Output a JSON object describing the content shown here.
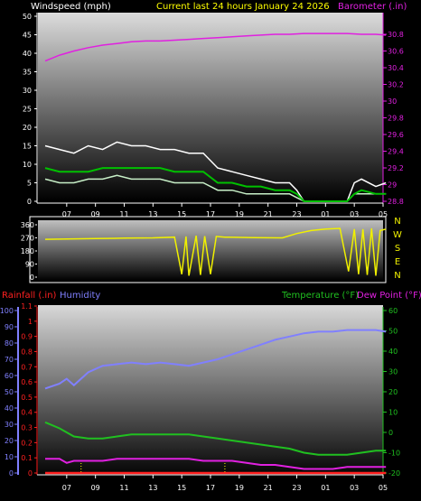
{
  "header": {
    "left": "Windspeed (mph)",
    "center": "Current last 24 hours January 24 2026",
    "right": "Barometer (.in)"
  },
  "footer_labels": {
    "rainfall": "Rainfall (.in)",
    "humidity": "Humidity",
    "temperature": "Temperature (°F)",
    "dewpoint": "Dew Point (°F)"
  },
  "colors": {
    "barometer": "#e020e0",
    "wind_gust": "#ffffff",
    "wind_speed": "#c8f0c8",
    "wind_avg": "#00c000",
    "direction": "#f0f000",
    "humidity": "#8080ff",
    "temperature": "#20c020",
    "dewpoint": "#e020e0",
    "rainfall": "#ff2020",
    "center_title": "#ffff00"
  },
  "chart_data": [
    {
      "id": "wind-barometer",
      "type": "line",
      "x_ticks": [
        "07",
        "09",
        "11",
        "13",
        "15",
        "17",
        "19",
        "21",
        "23",
        "01",
        "03",
        "05"
      ],
      "y_left_ticks": [
        "0",
        "5",
        "10",
        "15",
        "20",
        "25",
        "30",
        "35",
        "40",
        "45",
        "50"
      ],
      "y_left_range": [
        0,
        50
      ],
      "y_right_ticks": [
        "28.8",
        "29",
        "29.2",
        "29.4",
        "29.6",
        "29.8",
        "30",
        "30.2",
        "30.4",
        "30.6",
        "30.8"
      ],
      "y_right_range": [
        28.8,
        30.8
      ],
      "series": [
        {
          "key": "barometer",
          "axis": "right",
          "x": [
            5.5,
            6.5,
            7.5,
            8.5,
            9.5,
            10.5,
            11.5,
            12.5,
            13.5,
            14.5,
            15.5,
            16.5,
            17.5,
            18.5,
            19.5,
            20.5,
            21.5,
            22.5,
            23.5,
            24.5,
            25.5,
            26.5,
            27.5,
            28.5,
            29.2
          ],
          "y": [
            30.48,
            30.55,
            30.6,
            30.64,
            30.67,
            30.69,
            30.71,
            30.72,
            30.72,
            30.73,
            30.74,
            30.75,
            30.76,
            30.77,
            30.78,
            30.79,
            30.8,
            30.8,
            30.81,
            30.81,
            30.81,
            30.81,
            30.8,
            30.8,
            30.79
          ]
        },
        {
          "key": "wind_gust",
          "axis": "left",
          "x": [
            5.5,
            6.5,
            7.5,
            8.5,
            9.5,
            10.5,
            11.5,
            12.5,
            13.5,
            14.5,
            15.5,
            16.5,
            17.5,
            18.5,
            19.5,
            20.5,
            21.5,
            22.5,
            23.0,
            23.5,
            25.5,
            26.5,
            27.0,
            27.5,
            28.5,
            29.2
          ],
          "y": [
            15,
            14,
            13,
            15,
            14,
            16,
            15,
            15,
            14,
            14,
            13,
            13,
            9,
            8,
            7,
            6,
            5,
            5,
            3,
            0,
            0,
            0,
            5,
            6,
            4,
            5
          ]
        },
        {
          "key": "wind_speed",
          "axis": "left",
          "x": [
            5.5,
            6.5,
            7.5,
            8.5,
            9.5,
            10.5,
            11.5,
            12.5,
            13.5,
            14.5,
            15.5,
            16.5,
            17.5,
            18.5,
            19.5,
            20.5,
            21.5,
            22.5,
            23.0,
            23.5,
            25.5,
            26.5,
            27.0,
            27.5,
            28.5,
            29.2
          ],
          "y": [
            6,
            5,
            5,
            6,
            6,
            7,
            6,
            6,
            6,
            5,
            5,
            5,
            3,
            3,
            2,
            2,
            2,
            2,
            1,
            0,
            0,
            0,
            2,
            2,
            2,
            2
          ]
        },
        {
          "key": "wind_avg",
          "axis": "left",
          "x": [
            5.5,
            6.5,
            7.5,
            8.5,
            9.5,
            10.5,
            11.5,
            12.5,
            13.5,
            14.5,
            15.5,
            16.5,
            17.5,
            18.5,
            19.5,
            20.5,
            21.5,
            22.5,
            23.0,
            23.5,
            25.5,
            26.5,
            27.0,
            27.5,
            28.5,
            29.2
          ],
          "y": [
            9,
            8,
            8,
            8,
            9,
            9,
            9,
            9,
            9,
            8,
            8,
            8,
            5,
            5,
            4,
            4,
            3,
            3,
            2,
            0,
            0,
            0,
            2,
            3,
            2,
            2
          ]
        }
      ]
    },
    {
      "id": "wind-direction",
      "type": "line",
      "x_ticks": [
        "07",
        "09",
        "11",
        "13",
        "15",
        "17",
        "19",
        "21",
        "23",
        "01",
        "03",
        "05"
      ],
      "y_left_ticks": [
        "0",
        "90",
        "180",
        "270",
        "360"
      ],
      "y_left_range": [
        0,
        360
      ],
      "y_right_ticks": [
        "N",
        "W",
        "S",
        "E",
        "N"
      ],
      "series": [
        {
          "key": "direction",
          "x": [
            5.5,
            7,
            9,
            11,
            13,
            14.5,
            15.0,
            15.3,
            15.5,
            16.0,
            16.3,
            16.6,
            17.0,
            17.4,
            18,
            20,
            22,
            23,
            24,
            25,
            26,
            26.6,
            27.0,
            27.3,
            27.6,
            27.9,
            28.2,
            28.5,
            28.8,
            29.2
          ],
          "y": [
            260,
            262,
            265,
            268,
            270,
            275,
            20,
            280,
            10,
            285,
            15,
            282,
            20,
            280,
            275,
            272,
            270,
            300,
            320,
            330,
            335,
            40,
            330,
            20,
            330,
            15,
            335,
            10,
            320,
            330
          ]
        }
      ]
    },
    {
      "id": "temp-humidity-rain",
      "type": "line",
      "x_ticks": [
        "07",
        "09",
        "11",
        "13",
        "15",
        "17",
        "19",
        "21",
        "23",
        "01",
        "03",
        "05"
      ],
      "y_left_ticks": [
        "0",
        "10",
        "20",
        "30",
        "40",
        "50",
        "60",
        "70",
        "80",
        "90",
        "100"
      ],
      "y_left_range": [
        0,
        100
      ],
      "y_rain_ticks": [
        "0",
        "0.1",
        "0.2",
        "0.3",
        "0.4",
        "0.5",
        "0.6",
        "0.7",
        "0.8",
        "0.9",
        "1",
        "1.1"
      ],
      "y_rain_range": [
        0,
        1.1
      ],
      "y_right_ticks": [
        "-20",
        "-10",
        "0",
        "10",
        "20",
        "30",
        "40",
        "50",
        "60"
      ],
      "y_right_range": [
        -20,
        60
      ],
      "series": [
        {
          "key": "humidity",
          "axis": "left",
          "x": [
            5.5,
            6.5,
            7.0,
            7.5,
            8.5,
            9.5,
            10.5,
            11.5,
            12.5,
            13.5,
            14.5,
            15.5,
            16.5,
            17.5,
            18.5,
            19.5,
            20.5,
            21.5,
            22.5,
            23.5,
            24.5,
            25.5,
            26.5,
            27.5,
            28.5,
            29.2
          ],
          "y": [
            52,
            55,
            58,
            54,
            62,
            66,
            67,
            68,
            67,
            68,
            67,
            66,
            68,
            70,
            73,
            76,
            79,
            82,
            84,
            86,
            87,
            87,
            88,
            88,
            88,
            87
          ]
        },
        {
          "key": "temperature",
          "axis": "right",
          "x": [
            5.5,
            6.5,
            7.5,
            8.5,
            9.5,
            10.5,
            11.5,
            12.5,
            13.5,
            14.5,
            15.5,
            16.5,
            17.5,
            18.5,
            19.5,
            20.5,
            21.5,
            22.5,
            23.5,
            24.5,
            25.5,
            26.5,
            27.5,
            28.5,
            29.2
          ],
          "y": [
            5,
            2,
            -2,
            -3,
            -3,
            -2,
            -1,
            -1,
            -1,
            -1,
            -1,
            -2,
            -3,
            -4,
            -5,
            -6,
            -7,
            -8,
            -10,
            -11,
            -11,
            -11,
            -10,
            -9,
            -9
          ]
        },
        {
          "key": "dewpoint",
          "axis": "right",
          "x": [
            5.5,
            6.5,
            7.0,
            7.5,
            8.5,
            9.5,
            10.5,
            11.5,
            12.5,
            13.5,
            14.5,
            15.5,
            16.5,
            17.5,
            18.5,
            19.5,
            20.5,
            21.5,
            22.5,
            23.5,
            24.5,
            25.5,
            26.5,
            27.5,
            28.5,
            29.2
          ],
          "y": [
            -13,
            -13,
            -15,
            -14,
            -14,
            -14,
            -13,
            -13,
            -13,
            -13,
            -13,
            -13,
            -14,
            -14,
            -14,
            -15,
            -16,
            -16,
            -17,
            -18,
            -18,
            -18,
            -17,
            -17,
            -17,
            -17
          ]
        },
        {
          "key": "rainfall",
          "axis": "rain",
          "x": [
            5.5,
            29.2
          ],
          "y": [
            0,
            0
          ]
        }
      ]
    }
  ]
}
